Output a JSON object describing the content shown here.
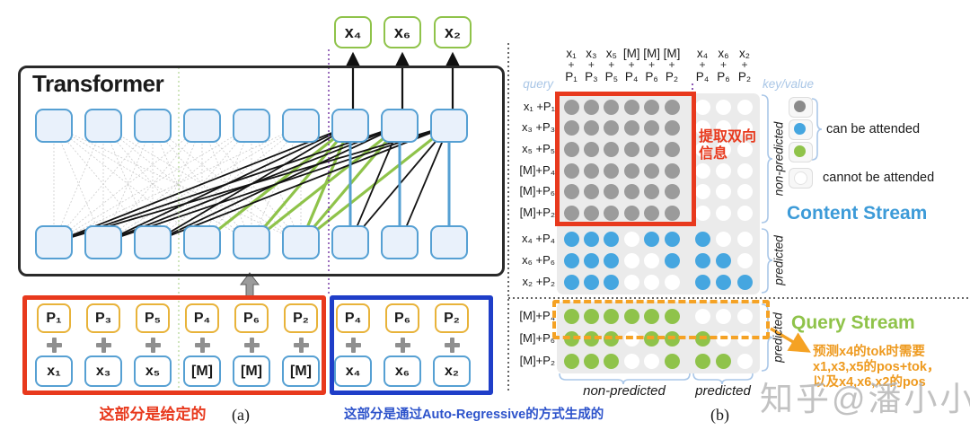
{
  "panel_a": {
    "transformer_label": "Transformer",
    "output_tokens": [
      "x₄",
      "x₆",
      "x₂"
    ],
    "given_box": {
      "columns": [
        {
          "pos": "P₁",
          "tok": "x₁"
        },
        {
          "pos": "P₃",
          "tok": "x₃"
        },
        {
          "pos": "P₅",
          "tok": "x₅"
        },
        {
          "pos": "P₄",
          "tok": "[M]"
        },
        {
          "pos": "P₆",
          "tok": "[M]"
        },
        {
          "pos": "P₂",
          "tok": "[M]"
        }
      ],
      "caption": "这部分是给定的"
    },
    "generated_box": {
      "columns": [
        {
          "pos": "P₄",
          "tok": "x₄"
        },
        {
          "pos": "P₆",
          "tok": "x₆"
        },
        {
          "pos": "P₂",
          "tok": "x₂"
        }
      ],
      "caption": "这部分是通过Auto-Regressive的方式生成的"
    },
    "label": "(a)"
  },
  "panel_b": {
    "query_label": "query",
    "keyvalue_label": "key/value",
    "col_tokens": [
      "x₁",
      "x₃",
      "x₅",
      "[M]",
      "[M]",
      "[M]",
      "x₄",
      "x₆",
      "x₂"
    ],
    "col_plus": "+",
    "col_positions": [
      "P₁",
      "P₃",
      "P₅",
      "P₄",
      "P₆",
      "P₂",
      "P₄",
      "P₆",
      "P₂"
    ],
    "content_stream": {
      "title": "Content Stream",
      "row_labels": [
        "x₁ +P₁",
        "x₃ +P₃",
        "x₅ +P₅",
        "[M]+P₄",
        "[M]+P₆",
        "[M]+P₂",
        "x₄ +P₄",
        "x₆ +P₆",
        "x₂ +P₂"
      ],
      "mask": [
        [
          "g",
          "g",
          "g",
          "g",
          "g",
          "g",
          "w",
          "w",
          "w"
        ],
        [
          "g",
          "g",
          "g",
          "g",
          "g",
          "g",
          "w",
          "w",
          "w"
        ],
        [
          "g",
          "g",
          "g",
          "g",
          "g",
          "g",
          "w",
          "w",
          "w"
        ],
        [
          "g",
          "g",
          "g",
          "g",
          "g",
          "g",
          "w",
          "w",
          "w"
        ],
        [
          "g",
          "g",
          "g",
          "g",
          "g",
          "g",
          "w",
          "w",
          "w"
        ],
        [
          "g",
          "g",
          "g",
          "g",
          "g",
          "g",
          "w",
          "w",
          "w"
        ],
        [
          "b",
          "b",
          "b",
          "w",
          "b",
          "b",
          "b",
          "w",
          "w"
        ],
        [
          "b",
          "b",
          "b",
          "w",
          "w",
          "b",
          "b",
          "b",
          "w"
        ],
        [
          "b",
          "b",
          "b",
          "w",
          "w",
          "w",
          "b",
          "b",
          "b"
        ]
      ],
      "annotation": "提取双向信息"
    },
    "query_stream": {
      "title": "Query Stream",
      "row_labels": [
        "[M]+P₄",
        "[M]+P₆",
        "[M]+P₂"
      ],
      "mask": [
        [
          "n",
          "n",
          "n",
          "n",
          "n",
          "n",
          "w",
          "w",
          "w"
        ],
        [
          "n",
          "n",
          "n",
          "w",
          "n",
          "n",
          "n",
          "w",
          "w"
        ],
        [
          "n",
          "n",
          "n",
          "w",
          "w",
          "n",
          "n",
          "n",
          "w"
        ]
      ],
      "note_lines": [
        "预测x4的tok时需要",
        "x1,x3,x5的pos+tok，",
        "以及x4,x6,x2的pos"
      ]
    },
    "legend": {
      "can_label": "can be attended",
      "cannot_label": "cannot be attended"
    },
    "group_labels": {
      "non_predicted": "non-predicted",
      "predicted": "predicted"
    },
    "label": "(b)"
  },
  "watermark": "知乎@潘小小",
  "colors": {
    "gray_dot": "#9b9b9b",
    "blue_dot": "#45a6e0",
    "green_dot": "#8fc34a",
    "white_dot": "#ffffff",
    "red_accent": "#e8391d",
    "blue_box": "#1f3ec8",
    "orange_accent": "#f5a224",
    "content_title": "#3d9bd8",
    "query_title": "#8fc34a"
  }
}
